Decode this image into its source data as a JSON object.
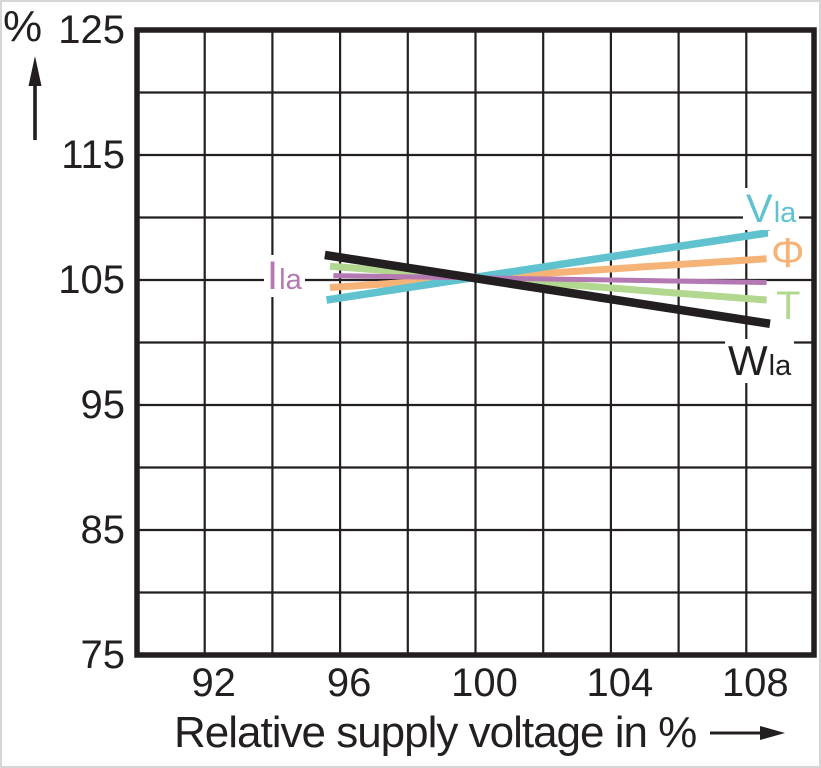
{
  "chart_data": {
    "type": "line",
    "title": "",
    "xlabel": "Relative supply voltage in %",
    "ylabel": "%",
    "xlim": [
      90,
      110
    ],
    "ylim": [
      75,
      125
    ],
    "xticks": [
      92,
      96,
      100,
      104,
      108
    ],
    "yticks": [
      125,
      115,
      105,
      95,
      85,
      75
    ],
    "xgrid": [
      92,
      94,
      96,
      98,
      100,
      102,
      104,
      106,
      108
    ],
    "ygrid": [
      80,
      85,
      90,
      95,
      100,
      105,
      110,
      115,
      120
    ],
    "grid": true,
    "legend_position": "inline-labels-at-line-ends",
    "axis_color": "#231f20",
    "crossing_point": {
      "x": 100,
      "y": 105
    },
    "series": [
      {
        "name": "Vla",
        "label_main": "V",
        "label_sub": "la",
        "color": "#5fc2ce",
        "width": 7.5,
        "z": 3,
        "x": [
          95.6,
          108.7
        ],
        "y": [
          103.4,
          108.8
        ]
      },
      {
        "name": "Phi",
        "label_main": "Φ",
        "label_sub": "",
        "color": "#f6b377",
        "width": 7,
        "z": 2,
        "x": [
          95.7,
          108.6
        ],
        "y": [
          104.4,
          106.7
        ]
      },
      {
        "name": "Ila",
        "label_main": "I",
        "label_sub": "la",
        "color": "#b478b3",
        "width": 5,
        "z": 4,
        "x": [
          95.8,
          108.6
        ],
        "y": [
          105.35,
          104.8
        ]
      },
      {
        "name": "T",
        "label_main": "T",
        "label_sub": "",
        "color": "#b2d78e",
        "width": 7,
        "z": 1,
        "x": [
          95.7,
          108.6
        ],
        "y": [
          106.1,
          103.4
        ]
      },
      {
        "name": "Wla",
        "label_main": "W",
        "label_sub": "la",
        "color": "#231f20",
        "width": 8.5,
        "z": 5,
        "x": [
          95.55,
          108.7
        ],
        "y": [
          107.0,
          101.5
        ]
      }
    ]
  }
}
